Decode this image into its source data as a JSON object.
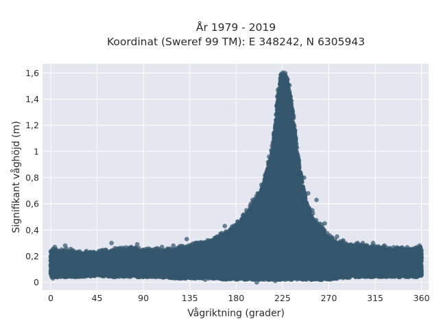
{
  "chart_data": {
    "type": "scatter",
    "title": "År 1979 - 2019",
    "subtitle": "Koordinat (Sweref 99 TM): E 348242, N 6305943",
    "xlabel": "Vågriktning (grader)",
    "ylabel": "Signifikant våghöjd (m)",
    "xlim": [
      -8,
      367
    ],
    "ylim": [
      -0.06,
      1.67
    ],
    "xticks": [
      0,
      45,
      90,
      135,
      180,
      225,
      270,
      315,
      360
    ],
    "xtick_labels": [
      "0",
      "45",
      "90",
      "135",
      "180",
      "225",
      "270",
      "315",
      "360"
    ],
    "yticks": [
      0,
      0.2,
      0.4,
      0.6,
      0.8,
      1.0,
      1.2,
      1.4,
      1.6
    ],
    "ytick_labels": [
      "0",
      "0,2",
      "0,4",
      "0,6",
      "0,8",
      "1",
      "1,2",
      "1,4",
      "1,6"
    ],
    "grid": true,
    "marker_color": "#34586e",
    "background_color": "#e5e7f0",
    "envelope": {
      "x": [
        0,
        15,
        30,
        45,
        60,
        75,
        90,
        105,
        120,
        135,
        150,
        160,
        170,
        180,
        190,
        200,
        205,
        210,
        215,
        218,
        220,
        222,
        224,
        226,
        228,
        230,
        232,
        235,
        238,
        242,
        248,
        255,
        262,
        270,
        280,
        295,
        315,
        335,
        360
      ],
      "y_max": [
        0.24,
        0.24,
        0.22,
        0.22,
        0.24,
        0.25,
        0.24,
        0.24,
        0.25,
        0.27,
        0.3,
        0.32,
        0.38,
        0.43,
        0.52,
        0.64,
        0.73,
        0.85,
        1.02,
        1.2,
        1.38,
        1.52,
        1.58,
        1.59,
        1.58,
        1.54,
        1.45,
        1.3,
        1.1,
        0.85,
        0.62,
        0.48,
        0.42,
        0.34,
        0.3,
        0.28,
        0.26,
        0.25,
        0.25
      ],
      "y_min": [
        0.04,
        0.04,
        0.04,
        0.05,
        0.04,
        0.04,
        0.04,
        0.04,
        0.03,
        0.03,
        0.03,
        0.03,
        0.02,
        0.02,
        0.02,
        0.02,
        0.02,
        0.02,
        0.02,
        0.02,
        0.02,
        0.02,
        0.02,
        0.02,
        0.02,
        0.02,
        0.02,
        0.02,
        0.02,
        0.02,
        0.02,
        0.02,
        0.02,
        0.02,
        0.03,
        0.04,
        0.04,
        0.04,
        0.04
      ]
    },
    "outlier_points": [
      {
        "x": 1,
        "y": 0.22
      },
      {
        "x": 4,
        "y": 0.27
      },
      {
        "x": 14,
        "y": 0.28
      },
      {
        "x": 21,
        "y": 0.22
      },
      {
        "x": 47,
        "y": 0.24
      },
      {
        "x": 59,
        "y": 0.3
      },
      {
        "x": 66,
        "y": 0.25
      },
      {
        "x": 78,
        "y": 0.27
      },
      {
        "x": 84,
        "y": 0.29
      },
      {
        "x": 97,
        "y": 0.25
      },
      {
        "x": 103,
        "y": 0.26
      },
      {
        "x": 108,
        "y": 0.27
      },
      {
        "x": 119,
        "y": 0.28
      },
      {
        "x": 127,
        "y": 0.26
      },
      {
        "x": 132,
        "y": 0.33
      },
      {
        "x": 142,
        "y": 0.3
      },
      {
        "x": 150,
        "y": 0.3
      },
      {
        "x": 160,
        "y": 0.34
      },
      {
        "x": 167,
        "y": 0.36
      },
      {
        "x": 169,
        "y": 0.43
      },
      {
        "x": 177,
        "y": 0.42
      },
      {
        "x": 185,
        "y": 0.47
      },
      {
        "x": 190,
        "y": 0.55
      },
      {
        "x": 196,
        "y": 0.63
      },
      {
        "x": 212,
        "y": 0.96
      },
      {
        "x": 239,
        "y": 1.03
      },
      {
        "x": 243,
        "y": 0.82
      },
      {
        "x": 246,
        "y": 0.8
      },
      {
        "x": 248,
        "y": 0.6
      },
      {
        "x": 250,
        "y": 0.68
      },
      {
        "x": 254,
        "y": 0.55
      },
      {
        "x": 258,
        "y": 0.63
      },
      {
        "x": 263,
        "y": 0.44
      },
      {
        "x": 266,
        "y": 0.45
      },
      {
        "x": 278,
        "y": 0.35
      },
      {
        "x": 284,
        "y": 0.32
      },
      {
        "x": 298,
        "y": 0.3
      },
      {
        "x": 303,
        "y": 0.3
      },
      {
        "x": 313,
        "y": 0.3
      },
      {
        "x": 324,
        "y": 0.28
      },
      {
        "x": 341,
        "y": 0.24
      },
      {
        "x": 355,
        "y": 0.26
      },
      {
        "x": 358,
        "y": 0.28
      },
      {
        "x": 2,
        "y": 0.03
      },
      {
        "x": 150,
        "y": 0.02
      },
      {
        "x": 200,
        "y": 0.0
      },
      {
        "x": 218,
        "y": 0.01
      },
      {
        "x": 340,
        "y": 0.05
      }
    ]
  }
}
